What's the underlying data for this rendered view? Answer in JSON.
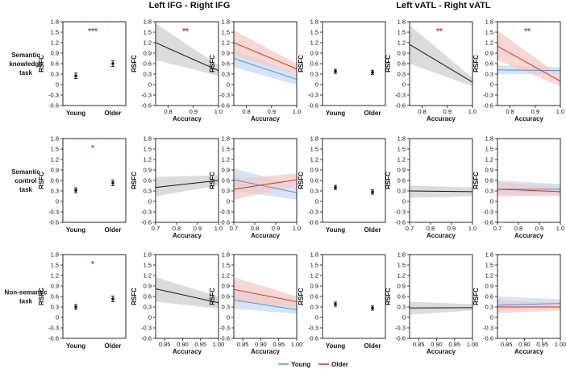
{
  "figure": {
    "group_titles": [
      "Left IFG - Right IFG",
      "Left vATL - Right vATL"
    ],
    "row_labels": [
      [
        "Semantic",
        "knowledge",
        "task"
      ],
      [
        "Semantic",
        "control",
        "task"
      ],
      [
        "Non-semantic",
        "task"
      ]
    ],
    "legend": [
      {
        "label": "Young",
        "color": "#5b8fd6"
      },
      {
        "label": "Older",
        "color": "#c0392b"
      }
    ],
    "colors": {
      "young": "#5b8fd6",
      "older": "#c0392b",
      "band_gray": "#cfcfcf",
      "band_blue": "#c6d9f2",
      "band_red": "#f3c9c4",
      "line": "#111111",
      "star": "#c0392b"
    }
  },
  "chart_data": [
    {
      "id": "r0c0",
      "type": "dot-error",
      "row": 0,
      "col": 0,
      "ylabel": "RSFC",
      "ylim": [
        -0.6,
        1.8
      ],
      "yticks": [
        -0.6,
        -0.3,
        0,
        0.3,
        0.6,
        0.9,
        1.2,
        1.5,
        1.8
      ],
      "categories": [
        "Young",
        "Older"
      ],
      "values": [
        0.25,
        0.6
      ],
      "errors": [
        0.08,
        0.08
      ],
      "significance": "***"
    },
    {
      "id": "r0c1",
      "type": "line",
      "row": 0,
      "col": 1,
      "ylabel": "RSFC",
      "xlabel": "Accuracy",
      "ylim": [
        -0.6,
        1.8
      ],
      "yticks": [
        -0.6,
        -0.3,
        0,
        0.3,
        0.6,
        0.9,
        1.2,
        1.5,
        1.8
      ],
      "xlim": [
        0.75,
        1.0
      ],
      "xticks": [
        0.8,
        0.9,
        1.0
      ],
      "xtick_labels": [
        "0.8",
        "0.9",
        "1.0"
      ],
      "significance": "**",
      "series": [
        {
          "name": "All",
          "color": "black",
          "band": "gray",
          "x": [
            0.75,
            1.0
          ],
          "y": [
            1.2,
            0.4
          ],
          "band_lower": [
            0.7,
            0.25
          ],
          "band_upper": [
            1.75,
            0.55
          ]
        }
      ]
    },
    {
      "id": "r0c2",
      "type": "line",
      "row": 0,
      "col": 2,
      "ylabel": "RSFC",
      "xlabel": "Accuracy",
      "ylim": [
        -0.6,
        1.8
      ],
      "yticks": [
        -0.6,
        -0.3,
        0,
        0.3,
        0.6,
        0.9,
        1.2,
        1.5,
        1.8
      ],
      "xlim": [
        0.75,
        1.0
      ],
      "xticks": [
        0.8,
        0.9,
        1.0
      ],
      "xtick_labels": [
        "0.8",
        "0.9",
        "1.0"
      ],
      "significance": "",
      "series": [
        {
          "name": "Young",
          "color": "blue",
          "band": "blue",
          "x": [
            0.75,
            1.0
          ],
          "y": [
            0.75,
            0.15
          ],
          "band_lower": [
            0.5,
            0.0
          ],
          "band_upper": [
            1.0,
            0.3
          ]
        },
        {
          "name": "Older",
          "color": "red",
          "band": "red",
          "x": [
            0.75,
            1.0
          ],
          "y": [
            1.2,
            0.45
          ],
          "band_lower": [
            0.85,
            0.3
          ],
          "band_upper": [
            1.55,
            0.6
          ]
        }
      ]
    },
    {
      "id": "r0c3",
      "type": "dot-error",
      "row": 0,
      "col": 3,
      "ylabel": "RSFC",
      "ylim": [
        -0.6,
        1.8
      ],
      "yticks": [
        -0.6,
        -0.3,
        0,
        0.3,
        0.6,
        0.9,
        1.2,
        1.5,
        1.8
      ],
      "categories": [
        "Young",
        "Older"
      ],
      "values": [
        0.38,
        0.35
      ],
      "errors": [
        0.06,
        0.06
      ],
      "significance": ""
    },
    {
      "id": "r0c4",
      "type": "line",
      "row": 0,
      "col": 4,
      "ylabel": "RSFC",
      "xlabel": "Accuracy",
      "ylim": [
        -0.6,
        1.8
      ],
      "yticks": [
        -0.6,
        -0.3,
        0,
        0.3,
        0.6,
        0.9,
        1.2,
        1.5,
        1.8
      ],
      "xlim": [
        0.75,
        1.0
      ],
      "xticks": [
        0.8,
        0.9,
        1.0
      ],
      "xtick_labels": [
        "0.8",
        "0.9",
        "1.0"
      ],
      "significance": "**",
      "series": [
        {
          "name": "All",
          "color": "black",
          "band": "gray",
          "x": [
            0.75,
            1.0
          ],
          "y": [
            1.15,
            0.07
          ],
          "band_lower": [
            0.6,
            -0.05
          ],
          "band_upper": [
            1.7,
            0.2
          ]
        }
      ]
    },
    {
      "id": "r0c5",
      "type": "line",
      "row": 0,
      "col": 5,
      "ylabel": "RSFC",
      "xlabel": "Accuracy",
      "ylim": [
        -0.6,
        1.8
      ],
      "yticks": [
        -0.6,
        -0.3,
        0,
        0.3,
        0.6,
        0.9,
        1.2,
        1.5,
        1.8
      ],
      "xlim": [
        0.75,
        1.0
      ],
      "xticks": [
        0.8,
        0.9,
        1.0
      ],
      "xtick_labels": [
        "0.8",
        "0.9",
        "1.0"
      ],
      "significance": "**",
      "series": [
        {
          "name": "Young",
          "color": "blue",
          "band": "blue",
          "x": [
            0.75,
            1.0
          ],
          "y": [
            0.42,
            0.4
          ],
          "band_lower": [
            0.3,
            0.3
          ],
          "band_upper": [
            0.55,
            0.5
          ]
        },
        {
          "name": "Older",
          "color": "red",
          "band": "red",
          "x": [
            0.75,
            1.0
          ],
          "y": [
            1.1,
            0.1
          ],
          "band_lower": [
            0.7,
            -0.05
          ],
          "band_upper": [
            1.55,
            0.25
          ]
        }
      ]
    },
    {
      "id": "r1c0",
      "type": "dot-error",
      "row": 1,
      "col": 0,
      "ylabel": "RSFC",
      "ylim": [
        -0.6,
        1.8
      ],
      "yticks": [
        -0.6,
        -0.3,
        0,
        0.3,
        0.6,
        0.9,
        1.2,
        1.5,
        1.8
      ],
      "categories": [
        "Young",
        "Older"
      ],
      "values": [
        0.32,
        0.53
      ],
      "errors": [
        0.07,
        0.08
      ],
      "significance": "*"
    },
    {
      "id": "r1c1",
      "type": "line",
      "row": 1,
      "col": 1,
      "ylabel": "RSFC",
      "xlabel": "Accuracy",
      "ylim": [
        -0.6,
        1.8
      ],
      "yticks": [
        -0.6,
        -0.3,
        0,
        0.3,
        0.6,
        0.9,
        1.2,
        1.5,
        1.8
      ],
      "xlim": [
        0.7,
        1.0
      ],
      "xticks": [
        0.7,
        0.8,
        0.9,
        1.0
      ],
      "xtick_labels": [
        "0.7",
        "0.8",
        "0.9",
        "1.0"
      ],
      "significance": "",
      "series": [
        {
          "name": "All",
          "color": "black",
          "band": "gray",
          "x": [
            0.7,
            1.0
          ],
          "y": [
            0.4,
            0.6
          ],
          "band_lower": [
            0.15,
            0.45
          ],
          "band_upper": [
            0.7,
            0.75
          ]
        }
      ]
    },
    {
      "id": "r1c2",
      "type": "line",
      "row": 1,
      "col": 2,
      "ylabel": "RSFC",
      "xlabel": "Accuracy",
      "ylim": [
        -0.6,
        1.8
      ],
      "yticks": [
        -0.6,
        -0.3,
        0,
        0.3,
        0.6,
        0.9,
        1.2,
        1.5,
        1.8
      ],
      "xlim": [
        0.7,
        1.0
      ],
      "xticks": [
        0.7,
        0.8,
        0.9,
        1.0
      ],
      "xtick_labels": [
        "0.7",
        "0.8",
        "0.9",
        "1.0"
      ],
      "significance": "",
      "series": [
        {
          "name": "Young",
          "color": "blue",
          "band": "blue",
          "x": [
            0.7,
            1.0
          ],
          "y": [
            0.62,
            0.25
          ],
          "band_lower": [
            0.3,
            0.05
          ],
          "band_upper": [
            0.95,
            0.45
          ]
        },
        {
          "name": "Older",
          "color": "red",
          "band": "red",
          "x": [
            0.7,
            1.0
          ],
          "y": [
            0.35,
            0.62
          ],
          "band_lower": [
            0.05,
            0.45
          ],
          "band_upper": [
            0.65,
            0.8
          ]
        }
      ]
    },
    {
      "id": "r1c3",
      "type": "dot-error",
      "row": 1,
      "col": 3,
      "ylabel": "RSFC",
      "ylim": [
        -0.6,
        1.8
      ],
      "yticks": [
        -0.6,
        -0.3,
        0,
        0.3,
        0.6,
        0.9,
        1.2,
        1.5,
        1.8
      ],
      "categories": [
        "Young",
        "Older"
      ],
      "values": [
        0.4,
        0.27
      ],
      "errors": [
        0.06,
        0.06
      ],
      "significance": ""
    },
    {
      "id": "r1c4",
      "type": "line",
      "row": 1,
      "col": 4,
      "ylabel": "RSFC",
      "xlabel": "Accuracy",
      "ylim": [
        -0.6,
        1.8
      ],
      "yticks": [
        -0.6,
        -0.3,
        0,
        0.3,
        0.6,
        0.9,
        1.2,
        1.5,
        1.8
      ],
      "xlim": [
        0.7,
        1.0
      ],
      "xticks": [
        0.7,
        0.8,
        0.9,
        1.0
      ],
      "xtick_labels": [
        "0.7",
        "0.8",
        "0.9",
        "1.0"
      ],
      "significance": "",
      "series": [
        {
          "name": "All",
          "color": "black",
          "band": "gray",
          "x": [
            0.7,
            1.0
          ],
          "y": [
            0.3,
            0.28
          ],
          "band_lower": [
            0.1,
            0.15
          ],
          "band_upper": [
            0.45,
            0.4
          ]
        }
      ]
    },
    {
      "id": "r1c5",
      "type": "line",
      "row": 1,
      "col": 5,
      "ylabel": "RSFC",
      "xlabel": "Accuracy",
      "ylim": [
        -0.6,
        1.8
      ],
      "yticks": [
        -0.6,
        -0.3,
        0,
        0.3,
        0.6,
        0.9,
        1.2,
        1.5,
        1.8
      ],
      "xlim": [
        0.7,
        1.0
      ],
      "xticks": [
        0.7,
        0.8,
        0.9,
        1.0
      ],
      "xtick_labels": [
        "0.7",
        "0.8",
        "0.9",
        "1.0"
      ],
      "significance": "",
      "series": [
        {
          "name": "Young",
          "color": "blue",
          "band": "blue",
          "x": [
            0.7,
            1.0
          ],
          "y": [
            0.35,
            0.35
          ],
          "band_lower": [
            0.2,
            0.2
          ],
          "band_upper": [
            0.6,
            0.5
          ]
        },
        {
          "name": "Older",
          "color": "red",
          "band": "red",
          "x": [
            0.7,
            1.0
          ],
          "y": [
            0.35,
            0.28
          ],
          "band_lower": [
            0.15,
            0.15
          ],
          "band_upper": [
            0.55,
            0.42
          ]
        }
      ]
    },
    {
      "id": "r2c0",
      "type": "dot-error",
      "row": 2,
      "col": 0,
      "ylabel": "RSFC",
      "ylim": [
        -0.6,
        1.8
      ],
      "yticks": [
        -0.6,
        -0.3,
        0,
        0.3,
        0.6,
        0.9,
        1.2,
        1.5,
        1.8
      ],
      "categories": [
        "Young",
        "Older"
      ],
      "values": [
        0.3,
        0.53
      ],
      "errors": [
        0.07,
        0.08
      ],
      "significance": "*"
    },
    {
      "id": "r2c1",
      "type": "line",
      "row": 2,
      "col": 1,
      "ylabel": "RSFC",
      "xlabel": "Accuracy",
      "ylim": [
        -0.6,
        1.8
      ],
      "yticks": [
        -0.6,
        -0.3,
        0,
        0.3,
        0.6,
        0.9,
        1.2,
        1.5,
        1.8
      ],
      "xlim": [
        0.825,
        1.0
      ],
      "xticks": [
        0.85,
        0.9,
        0.95,
        1.0
      ],
      "xtick_labels": [
        "0.85",
        "0.90",
        "0.95",
        "1.00"
      ],
      "significance": "",
      "series": [
        {
          "name": "All",
          "color": "black",
          "band": "gray",
          "x": [
            0.825,
            1.0
          ],
          "y": [
            0.82,
            0.42
          ],
          "band_lower": [
            0.45,
            0.25
          ],
          "band_upper": [
            1.15,
            0.6
          ]
        }
      ]
    },
    {
      "id": "r2c2",
      "type": "line",
      "row": 2,
      "col": 2,
      "ylabel": "RSFC",
      "xlabel": "Accuracy",
      "ylim": [
        -0.6,
        1.8
      ],
      "yticks": [
        -0.6,
        -0.3,
        0,
        0.3,
        0.6,
        0.9,
        1.2,
        1.5,
        1.8
      ],
      "xlim": [
        0.825,
        1.0
      ],
      "xticks": [
        0.85,
        0.9,
        0.95,
        1.0
      ],
      "xtick_labels": [
        "0.85",
        "0.90",
        "0.95",
        "1.00"
      ],
      "significance": "",
      "series": [
        {
          "name": "Young",
          "color": "blue",
          "band": "blue",
          "x": [
            0.825,
            1.0
          ],
          "y": [
            0.5,
            0.22
          ],
          "band_lower": [
            0.25,
            0.1
          ],
          "band_upper": [
            0.75,
            0.4
          ]
        },
        {
          "name": "Older",
          "color": "red",
          "band": "red",
          "x": [
            0.825,
            1.0
          ],
          "y": [
            0.8,
            0.45
          ],
          "band_lower": [
            0.45,
            0.3
          ],
          "band_upper": [
            1.15,
            0.6
          ]
        }
      ]
    },
    {
      "id": "r2c3",
      "type": "dot-error",
      "row": 2,
      "col": 3,
      "ylabel": "RSFC",
      "ylim": [
        -0.6,
        1.8
      ],
      "yticks": [
        -0.6,
        -0.3,
        0,
        0.3,
        0.6,
        0.9,
        1.2,
        1.5,
        1.8
      ],
      "categories": [
        "Young",
        "Older"
      ],
      "values": [
        0.38,
        0.27
      ],
      "errors": [
        0.06,
        0.06
      ],
      "significance": ""
    },
    {
      "id": "r2c4",
      "type": "line",
      "row": 2,
      "col": 4,
      "ylabel": "RSFC",
      "xlabel": "Accuracy",
      "ylim": [
        -0.6,
        1.8
      ],
      "yticks": [
        -0.6,
        -0.3,
        0,
        0.3,
        0.6,
        0.9,
        1.2,
        1.5,
        1.8
      ],
      "xlim": [
        0.825,
        1.0
      ],
      "xticks": [
        0.85,
        0.9,
        0.95,
        1.0
      ],
      "xtick_labels": [
        "0.85",
        "0.90",
        "0.95",
        "1.00"
      ],
      "significance": "",
      "series": [
        {
          "name": "All",
          "color": "black",
          "band": "gray",
          "x": [
            0.825,
            1.0
          ],
          "y": [
            0.27,
            0.28
          ],
          "band_lower": [
            0.08,
            0.2
          ],
          "band_upper": [
            0.45,
            0.38
          ]
        }
      ]
    },
    {
      "id": "r2c5",
      "type": "line",
      "row": 2,
      "col": 5,
      "ylabel": "RSFC",
      "xlabel": "Accuracy",
      "ylim": [
        -0.6,
        1.8
      ],
      "yticks": [
        -0.6,
        -0.3,
        0,
        0.3,
        0.6,
        0.9,
        1.2,
        1.5,
        1.8
      ],
      "xlim": [
        0.825,
        1.0
      ],
      "xticks": [
        0.85,
        0.9,
        0.95,
        1.0
      ],
      "xtick_labels": [
        "0.85",
        "0.90",
        "0.95",
        "1.00"
      ],
      "significance": "",
      "series": [
        {
          "name": "Young",
          "color": "blue",
          "band": "blue",
          "x": [
            0.825,
            1.0
          ],
          "y": [
            0.35,
            0.4
          ],
          "band_lower": [
            0.2,
            0.28
          ],
          "band_upper": [
            0.6,
            0.52
          ]
        },
        {
          "name": "Older",
          "color": "red",
          "band": "red",
          "x": [
            0.825,
            1.0
          ],
          "y": [
            0.3,
            0.3
          ],
          "band_lower": [
            0.12,
            0.2
          ],
          "band_upper": [
            0.5,
            0.42
          ]
        }
      ]
    }
  ]
}
